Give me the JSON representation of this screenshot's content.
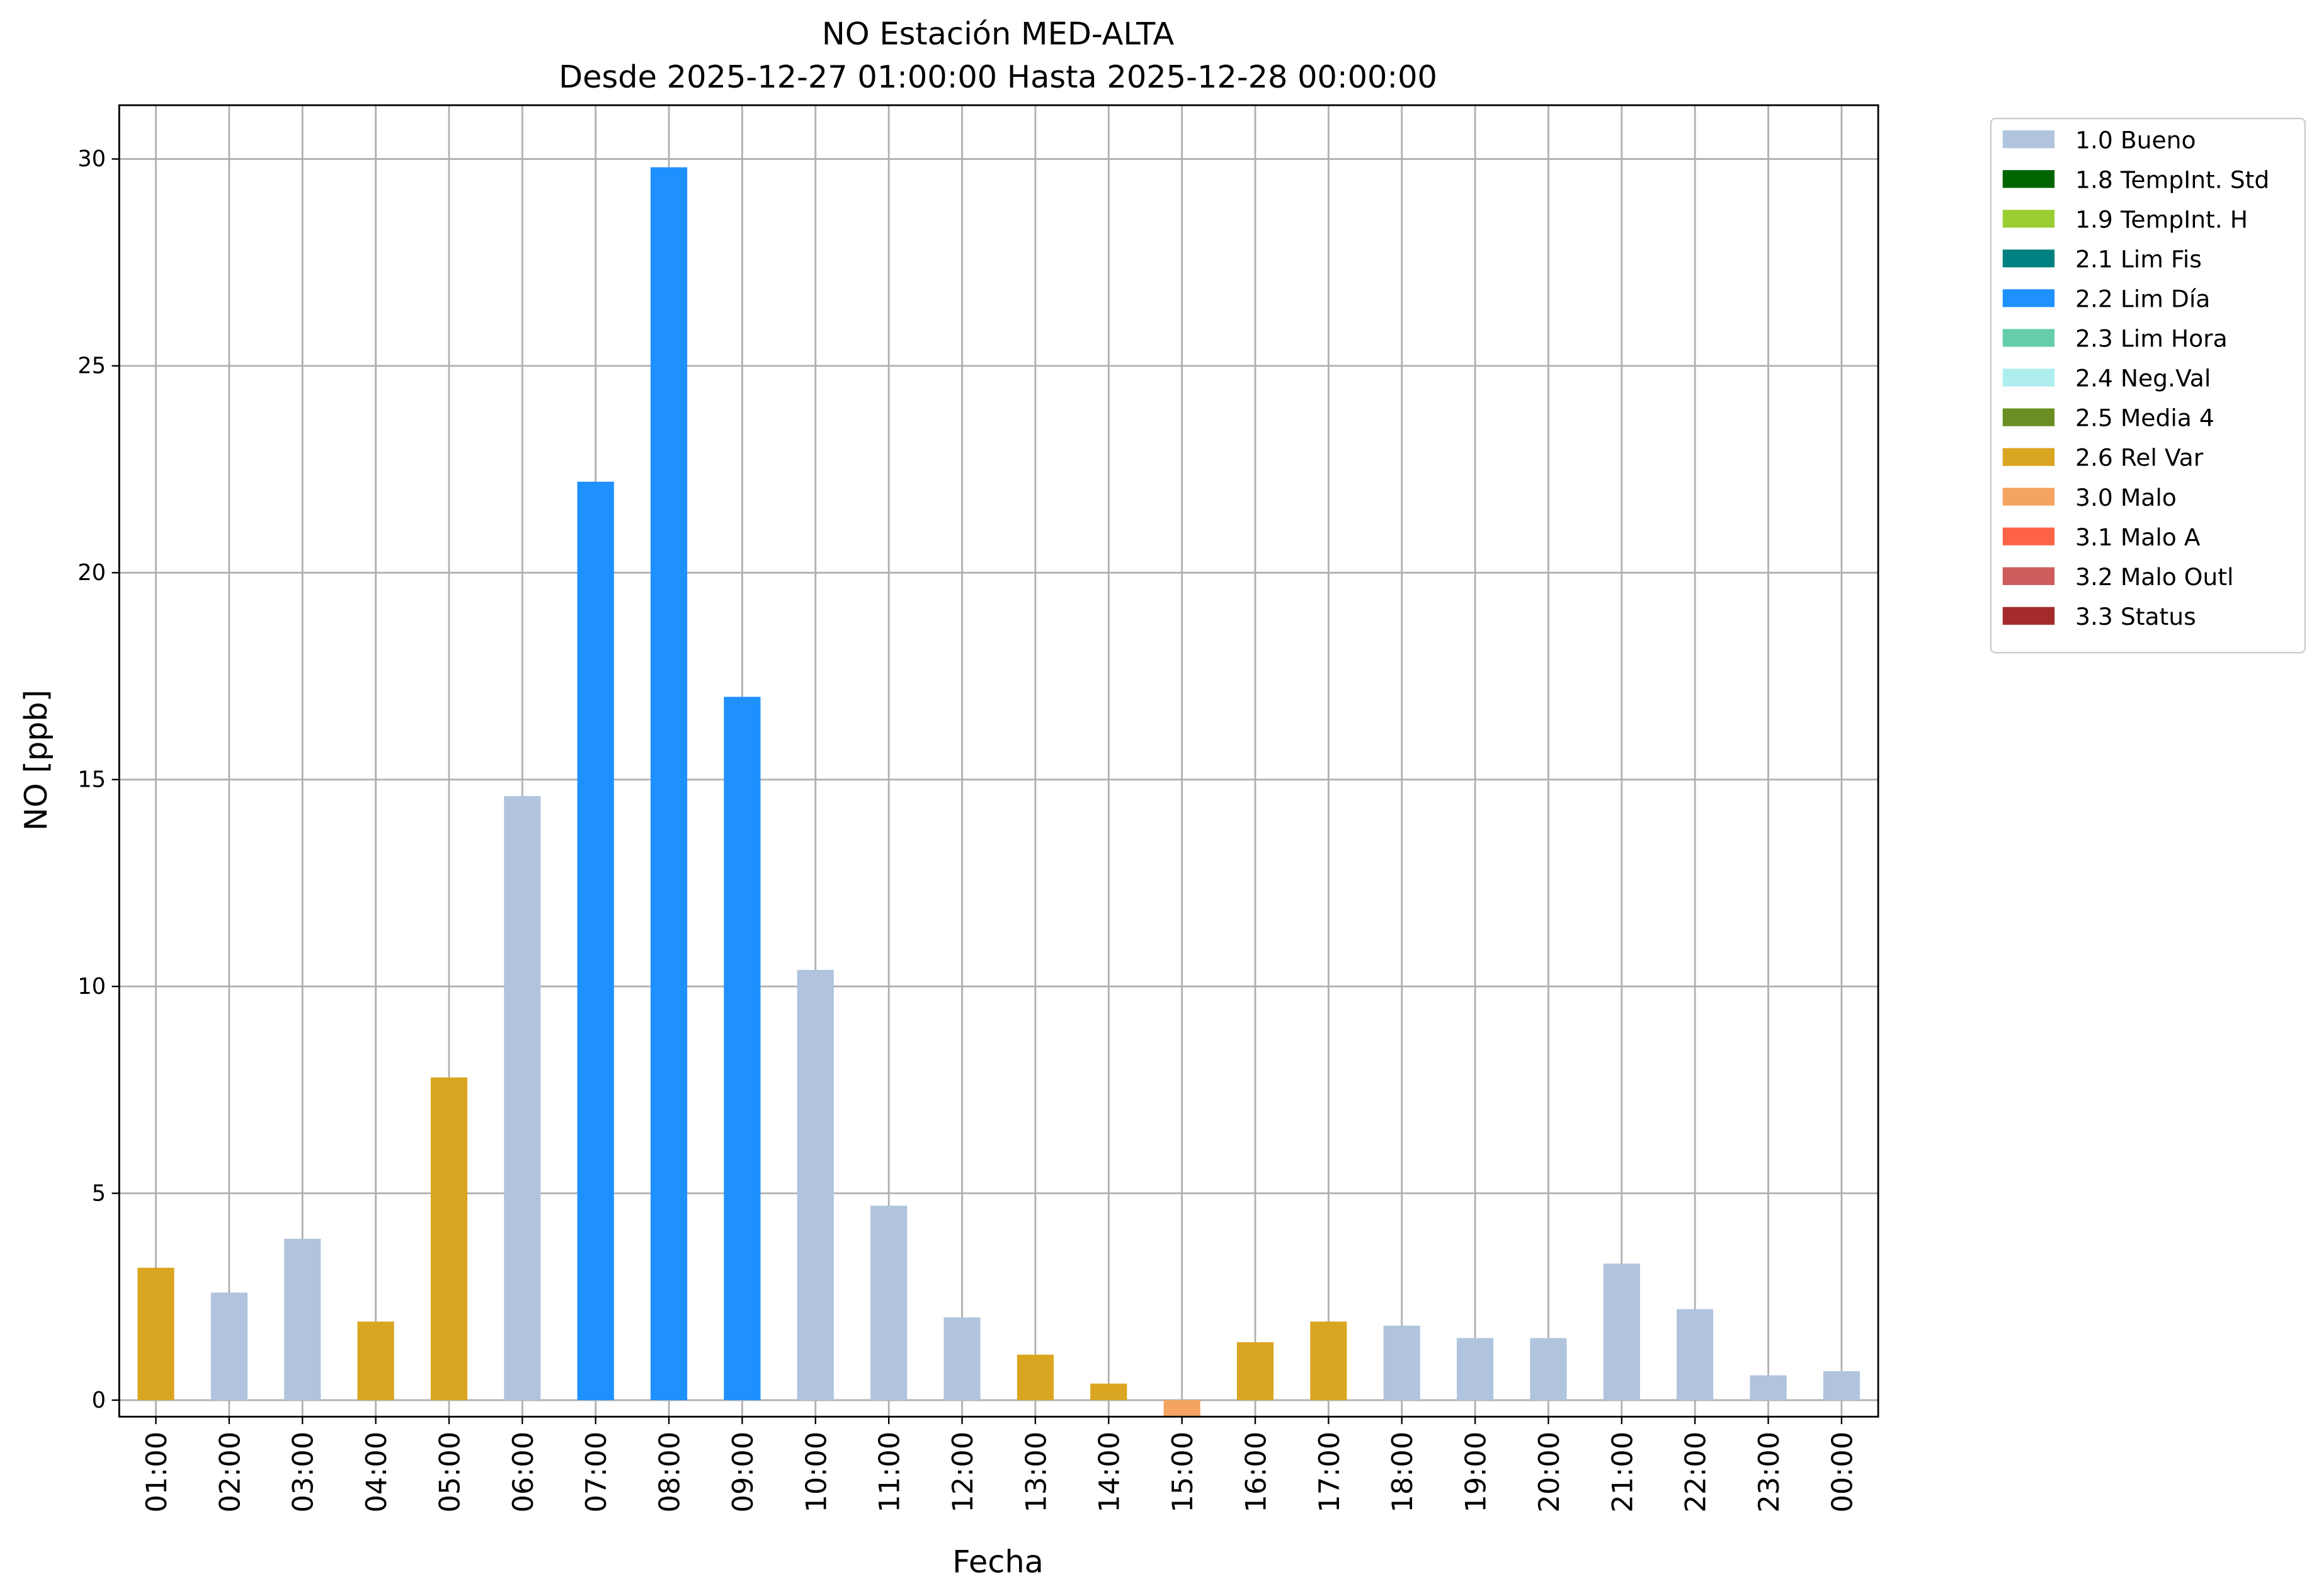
{
  "chart_data": {
    "type": "bar",
    "title": "NO Estación MED-ALTA",
    "subtitle": "Desde 2025-12-27 01:00:00 Hasta 2025-12-28 00:00:00",
    "x_label": "Fecha",
    "y_label": "NO [ppb]",
    "categories": [
      "01:00",
      "02:00",
      "03:00",
      "04:00",
      "05:00",
      "06:00",
      "07:00",
      "08:00",
      "09:00",
      "10:00",
      "11:00",
      "12:00",
      "13:00",
      "14:00",
      "15:00",
      "16:00",
      "17:00",
      "18:00",
      "19:00",
      "20:00",
      "21:00",
      "22:00",
      "23:00",
      "00:00"
    ],
    "series": [
      {
        "name": "1.0 Bueno",
        "color": "#b0c4de",
        "values": [
          null,
          2.6,
          3.9,
          null,
          null,
          14.6,
          null,
          null,
          null,
          10.4,
          4.7,
          2.0,
          null,
          null,
          null,
          null,
          null,
          1.8,
          1.5,
          1.5,
          3.3,
          2.2,
          0.6,
          0.7
        ]
      },
      {
        "name": "1.8 TempInt. Std",
        "color": "#006400",
        "values": [
          null,
          null,
          null,
          null,
          null,
          null,
          null,
          null,
          null,
          null,
          null,
          null,
          null,
          null,
          null,
          null,
          null,
          null,
          null,
          null,
          null,
          null,
          null,
          null
        ]
      },
      {
        "name": "1.9 TempInt. H",
        "color": "#9acd32",
        "values": [
          null,
          null,
          null,
          null,
          null,
          null,
          null,
          null,
          null,
          null,
          null,
          null,
          null,
          null,
          null,
          null,
          null,
          null,
          null,
          null,
          null,
          null,
          null,
          null
        ]
      },
      {
        "name": "2.1 Lim Fis",
        "color": "#008080",
        "values": [
          null,
          null,
          null,
          null,
          null,
          null,
          null,
          null,
          null,
          null,
          null,
          null,
          null,
          null,
          null,
          null,
          null,
          null,
          null,
          null,
          null,
          null,
          null,
          null
        ]
      },
      {
        "name": "2.2 Lim Día",
        "color": "#1e90ff",
        "values": [
          null,
          null,
          null,
          null,
          null,
          null,
          22.2,
          29.8,
          17.0,
          null,
          null,
          null,
          null,
          null,
          null,
          null,
          null,
          null,
          null,
          null,
          null,
          null,
          null,
          null
        ]
      },
      {
        "name": "2.3 Lim Hora",
        "color": "#66cdaa",
        "values": [
          null,
          null,
          null,
          null,
          null,
          null,
          null,
          null,
          null,
          null,
          null,
          null,
          null,
          null,
          null,
          null,
          null,
          null,
          null,
          null,
          null,
          null,
          null,
          null
        ]
      },
      {
        "name": "2.4 Neg.Val",
        "color": "#afeeee",
        "values": [
          null,
          null,
          null,
          null,
          null,
          null,
          null,
          null,
          null,
          null,
          null,
          null,
          null,
          null,
          null,
          null,
          null,
          null,
          null,
          null,
          null,
          null,
          null,
          null
        ]
      },
      {
        "name": "2.5 Media 4",
        "color": "#6b8e23",
        "values": [
          null,
          null,
          null,
          null,
          null,
          null,
          null,
          null,
          null,
          null,
          null,
          null,
          null,
          null,
          null,
          null,
          null,
          null,
          null,
          null,
          null,
          null,
          null,
          null
        ]
      },
      {
        "name": "2.6 Rel Var",
        "color": "#daa520",
        "values": [
          3.2,
          null,
          null,
          1.9,
          7.8,
          null,
          null,
          null,
          null,
          null,
          null,
          null,
          1.1,
          0.4,
          null,
          1.4,
          1.9,
          null,
          null,
          null,
          null,
          null,
          null,
          null
        ]
      },
      {
        "name": "3.0 Malo",
        "color": "#f4a460",
        "values": [
          null,
          null,
          null,
          null,
          null,
          null,
          null,
          null,
          null,
          null,
          null,
          null,
          null,
          null,
          -0.4,
          null,
          null,
          null,
          null,
          null,
          null,
          null,
          null,
          null
        ]
      },
      {
        "name": "3.1 Malo A",
        "color": "#ff6347",
        "values": [
          null,
          null,
          null,
          null,
          null,
          null,
          null,
          null,
          null,
          null,
          null,
          null,
          null,
          null,
          null,
          null,
          null,
          null,
          null,
          null,
          null,
          null,
          null,
          null
        ]
      },
      {
        "name": "3.2 Malo Outl",
        "color": "#cd5c5c",
        "values": [
          null,
          null,
          null,
          null,
          null,
          null,
          null,
          null,
          null,
          null,
          null,
          null,
          null,
          null,
          null,
          null,
          null,
          null,
          null,
          null,
          null,
          null,
          null,
          null
        ]
      },
      {
        "name": "3.3 Status",
        "color": "#a52a2a",
        "values": [
          null,
          null,
          null,
          null,
          null,
          null,
          null,
          null,
          null,
          null,
          null,
          null,
          null,
          null,
          null,
          null,
          null,
          null,
          null,
          null,
          null,
          null,
          null,
          null
        ]
      }
    ],
    "ylim": [
      -0.4,
      31.3
    ],
    "yticks": [
      0,
      5,
      10,
      15,
      20,
      25,
      30
    ],
    "grid": true,
    "legend": "outside-right"
  }
}
